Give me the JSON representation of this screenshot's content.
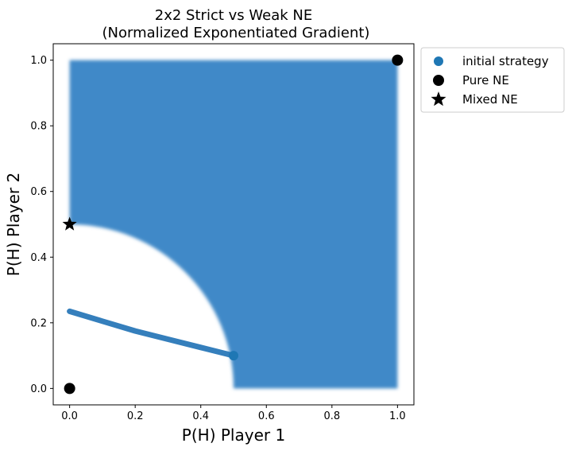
{
  "chart_data": {
    "type": "scatter",
    "title": "2x2 Strict vs Weak NE",
    "subtitle": "(Normalized Exponentiated Gradient)",
    "xlabel": "P(H) Player 1",
    "ylabel": "P(H) Player 2",
    "xlim": [
      -0.05,
      1.05
    ],
    "ylim": [
      -0.05,
      1.05
    ],
    "x_ticks": [
      "0.0",
      "0.2",
      "0.4",
      "0.6",
      "0.8",
      "1.0"
    ],
    "y_ticks": [
      "0.0",
      "0.2",
      "0.4",
      "0.6",
      "0.8",
      "1.0"
    ],
    "grid": false,
    "legend_position": "outside-upper-right",
    "region": {
      "x_range": [
        0.0,
        1.0
      ],
      "y_range": [
        0.0,
        1.0
      ],
      "excluded_region": "quarter circle centered at (0,0) with radius 0.5 (white, not filled)"
    },
    "trajectory": [
      {
        "x": 0.5,
        "y": 0.1
      },
      {
        "x": 0.4,
        "y": 0.125
      },
      {
        "x": 0.3,
        "y": 0.15
      },
      {
        "x": 0.2,
        "y": 0.175
      },
      {
        "x": 0.1,
        "y": 0.205
      },
      {
        "x": 0.0,
        "y": 0.235
      }
    ],
    "series": [
      {
        "name": "initial strategy",
        "marker": "circle",
        "color": "#1f77b4",
        "points": [
          {
            "x": 0.5,
            "y": 0.1
          }
        ]
      },
      {
        "name": "Pure NE",
        "marker": "circle",
        "color": "#000000",
        "points": [
          {
            "x": 0.0,
            "y": 0.0
          },
          {
            "x": 1.0,
            "y": 1.0
          }
        ]
      },
      {
        "name": "Mixed NE",
        "marker": "star",
        "color": "#000000",
        "points": [
          {
            "x": 0.0,
            "y": 0.5
          }
        ]
      }
    ],
    "colors": {
      "region": "#4189c8",
      "trajectory": "#2a78b8",
      "initial": "#1f77b4",
      "ne": "#000000"
    }
  }
}
